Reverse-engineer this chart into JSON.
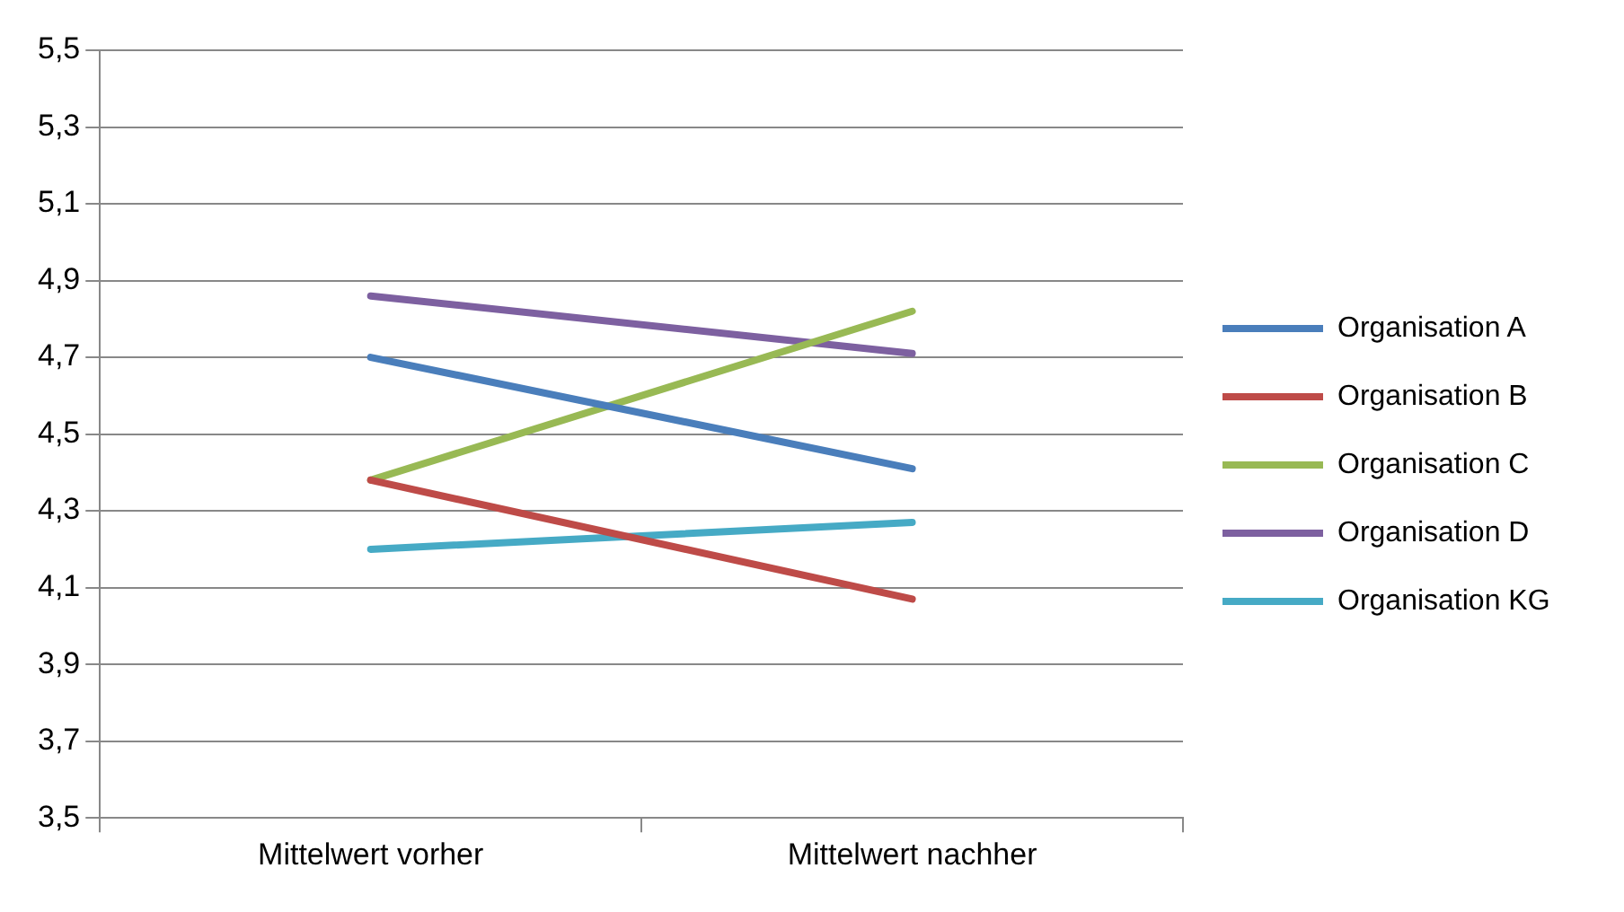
{
  "chart_data": {
    "type": "line",
    "categories": [
      "Mittelwert vorher",
      "Mittelwert nachher"
    ],
    "series": [
      {
        "name": "Organisation A",
        "color": "#4a7ebb",
        "values": [
          4.7,
          4.41
        ]
      },
      {
        "name": "Organisation B",
        "color": "#be4b48",
        "values": [
          4.38,
          4.07
        ]
      },
      {
        "name": "Organisation C",
        "color": "#98b954",
        "values": [
          4.38,
          4.82
        ]
      },
      {
        "name": "Organisation D",
        "color": "#7d60a0",
        "values": [
          4.86,
          4.71
        ]
      },
      {
        "name": "Organisation KG",
        "color": "#46aac5",
        "values": [
          4.2,
          4.27
        ]
      }
    ],
    "ylim": [
      3.5,
      5.5
    ],
    "yticks": [
      {
        "value": 3.5,
        "label": "3,5"
      },
      {
        "value": 3.7,
        "label": "3,7"
      },
      {
        "value": 3.9,
        "label": "3,9"
      },
      {
        "value": 4.1,
        "label": "4,1"
      },
      {
        "value": 4.3,
        "label": "4,3"
      },
      {
        "value": 4.5,
        "label": "4,5"
      },
      {
        "value": 4.7,
        "label": "4,7"
      },
      {
        "value": 4.9,
        "label": "4,9"
      },
      {
        "value": 5.1,
        "label": "5,1"
      },
      {
        "value": 5.3,
        "label": "5,3"
      },
      {
        "value": 5.5,
        "label": "5,5"
      }
    ],
    "grid": "y",
    "legend": "right",
    "marker": "none",
    "line_style": "solid"
  }
}
